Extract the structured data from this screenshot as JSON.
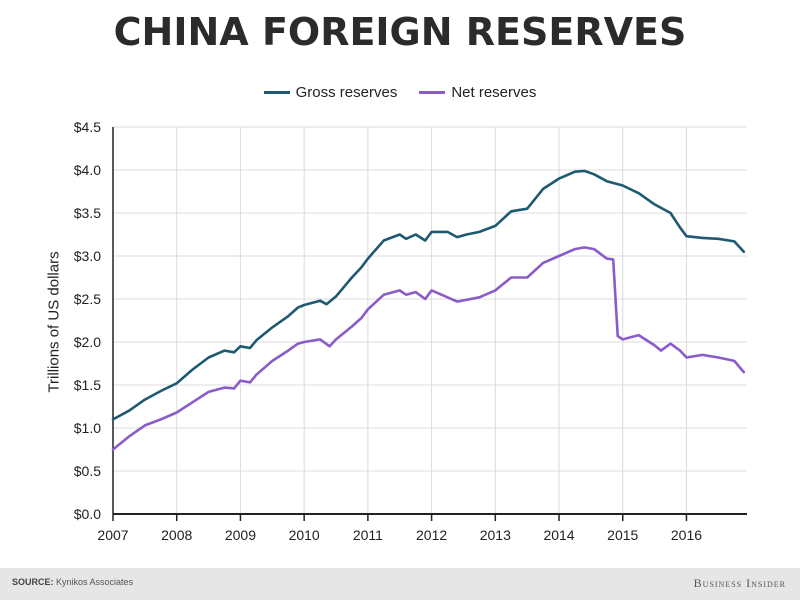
{
  "title": "CHINA FOREIGN RESERVES",
  "footer": {
    "source_prefix": "SOURCE:",
    "source_text": "Kynikos Associates",
    "brand": "Business Insider"
  },
  "colors": {
    "gross": "#1d5a72",
    "net": "#8a5cc9",
    "grid": "#dcdcdc",
    "axis": "#222222"
  },
  "chart_data": {
    "type": "line",
    "title": "CHINA FOREIGN RESERVES",
    "xlabel": "",
    "ylabel": "Trillions of US dollars",
    "xlim": [
      2007,
      2016.95
    ],
    "ylim": [
      0,
      4.5
    ],
    "x_ticks": [
      "2007",
      "2008",
      "2009",
      "2010",
      "2011",
      "2012",
      "2013",
      "2014",
      "2015",
      "2016"
    ],
    "y_ticks": [
      "$0.0",
      "$0.5",
      "$1.0",
      "$1.5",
      "$2.0",
      "$2.5",
      "$3.0",
      "$3.5",
      "$4.0",
      "$4.5"
    ],
    "grid": true,
    "legend_position": "top-center",
    "series": [
      {
        "name": "Gross reserves",
        "points": [
          [
            2007.0,
            1.1
          ],
          [
            2007.25,
            1.2
          ],
          [
            2007.5,
            1.33
          ],
          [
            2007.75,
            1.43
          ],
          [
            2008.0,
            1.52
          ],
          [
            2008.25,
            1.68
          ],
          [
            2008.5,
            1.82
          ],
          [
            2008.75,
            1.9
          ],
          [
            2008.9,
            1.88
          ],
          [
            2009.0,
            1.95
          ],
          [
            2009.15,
            1.93
          ],
          [
            2009.25,
            2.02
          ],
          [
            2009.5,
            2.17
          ],
          [
            2009.75,
            2.3
          ],
          [
            2009.9,
            2.4
          ],
          [
            2010.0,
            2.43
          ],
          [
            2010.25,
            2.48
          ],
          [
            2010.35,
            2.44
          ],
          [
            2010.5,
            2.53
          ],
          [
            2010.75,
            2.75
          ],
          [
            2010.9,
            2.87
          ],
          [
            2011.0,
            2.97
          ],
          [
            2011.25,
            3.18
          ],
          [
            2011.5,
            3.25
          ],
          [
            2011.6,
            3.2
          ],
          [
            2011.75,
            3.25
          ],
          [
            2011.9,
            3.18
          ],
          [
            2012.0,
            3.28
          ],
          [
            2012.25,
            3.28
          ],
          [
            2012.4,
            3.22
          ],
          [
            2012.55,
            3.25
          ],
          [
            2012.75,
            3.28
          ],
          [
            2013.0,
            3.35
          ],
          [
            2013.25,
            3.52
          ],
          [
            2013.5,
            3.55
          ],
          [
            2013.75,
            3.78
          ],
          [
            2014.0,
            3.9
          ],
          [
            2014.25,
            3.98
          ],
          [
            2014.4,
            3.99
          ],
          [
            2014.55,
            3.95
          ],
          [
            2014.75,
            3.87
          ],
          [
            2015.0,
            3.82
          ],
          [
            2015.25,
            3.73
          ],
          [
            2015.5,
            3.6
          ],
          [
            2015.75,
            3.5
          ],
          [
            2015.9,
            3.33
          ],
          [
            2016.0,
            3.23
          ],
          [
            2016.25,
            3.21
          ],
          [
            2016.5,
            3.2
          ],
          [
            2016.75,
            3.17
          ],
          [
            2016.9,
            3.05
          ]
        ]
      },
      {
        "name": "Net reserves",
        "points": [
          [
            2007.0,
            0.75
          ],
          [
            2007.25,
            0.9
          ],
          [
            2007.5,
            1.03
          ],
          [
            2007.75,
            1.1
          ],
          [
            2008.0,
            1.18
          ],
          [
            2008.25,
            1.3
          ],
          [
            2008.5,
            1.42
          ],
          [
            2008.75,
            1.47
          ],
          [
            2008.9,
            1.46
          ],
          [
            2009.0,
            1.55
          ],
          [
            2009.15,
            1.53
          ],
          [
            2009.25,
            1.62
          ],
          [
            2009.5,
            1.78
          ],
          [
            2009.75,
            1.9
          ],
          [
            2009.9,
            1.98
          ],
          [
            2010.0,
            2.0
          ],
          [
            2010.25,
            2.03
          ],
          [
            2010.4,
            1.95
          ],
          [
            2010.5,
            2.03
          ],
          [
            2010.75,
            2.18
          ],
          [
            2010.9,
            2.28
          ],
          [
            2011.0,
            2.38
          ],
          [
            2011.25,
            2.55
          ],
          [
            2011.5,
            2.6
          ],
          [
            2011.6,
            2.55
          ],
          [
            2011.75,
            2.58
          ],
          [
            2011.9,
            2.5
          ],
          [
            2012.0,
            2.6
          ],
          [
            2012.25,
            2.52
          ],
          [
            2012.4,
            2.47
          ],
          [
            2012.75,
            2.52
          ],
          [
            2013.0,
            2.6
          ],
          [
            2013.25,
            2.75
          ],
          [
            2013.5,
            2.75
          ],
          [
            2013.75,
            2.92
          ],
          [
            2014.0,
            3.0
          ],
          [
            2014.25,
            3.08
          ],
          [
            2014.4,
            3.1
          ],
          [
            2014.55,
            3.08
          ],
          [
            2014.75,
            2.97
          ],
          [
            2014.85,
            2.96
          ],
          [
            2014.92,
            2.07
          ],
          [
            2015.0,
            2.03
          ],
          [
            2015.25,
            2.08
          ],
          [
            2015.5,
            1.96
          ],
          [
            2015.6,
            1.9
          ],
          [
            2015.75,
            1.98
          ],
          [
            2015.9,
            1.9
          ],
          [
            2016.0,
            1.82
          ],
          [
            2016.25,
            1.85
          ],
          [
            2016.5,
            1.82
          ],
          [
            2016.75,
            1.78
          ],
          [
            2016.9,
            1.65
          ]
        ]
      }
    ]
  }
}
